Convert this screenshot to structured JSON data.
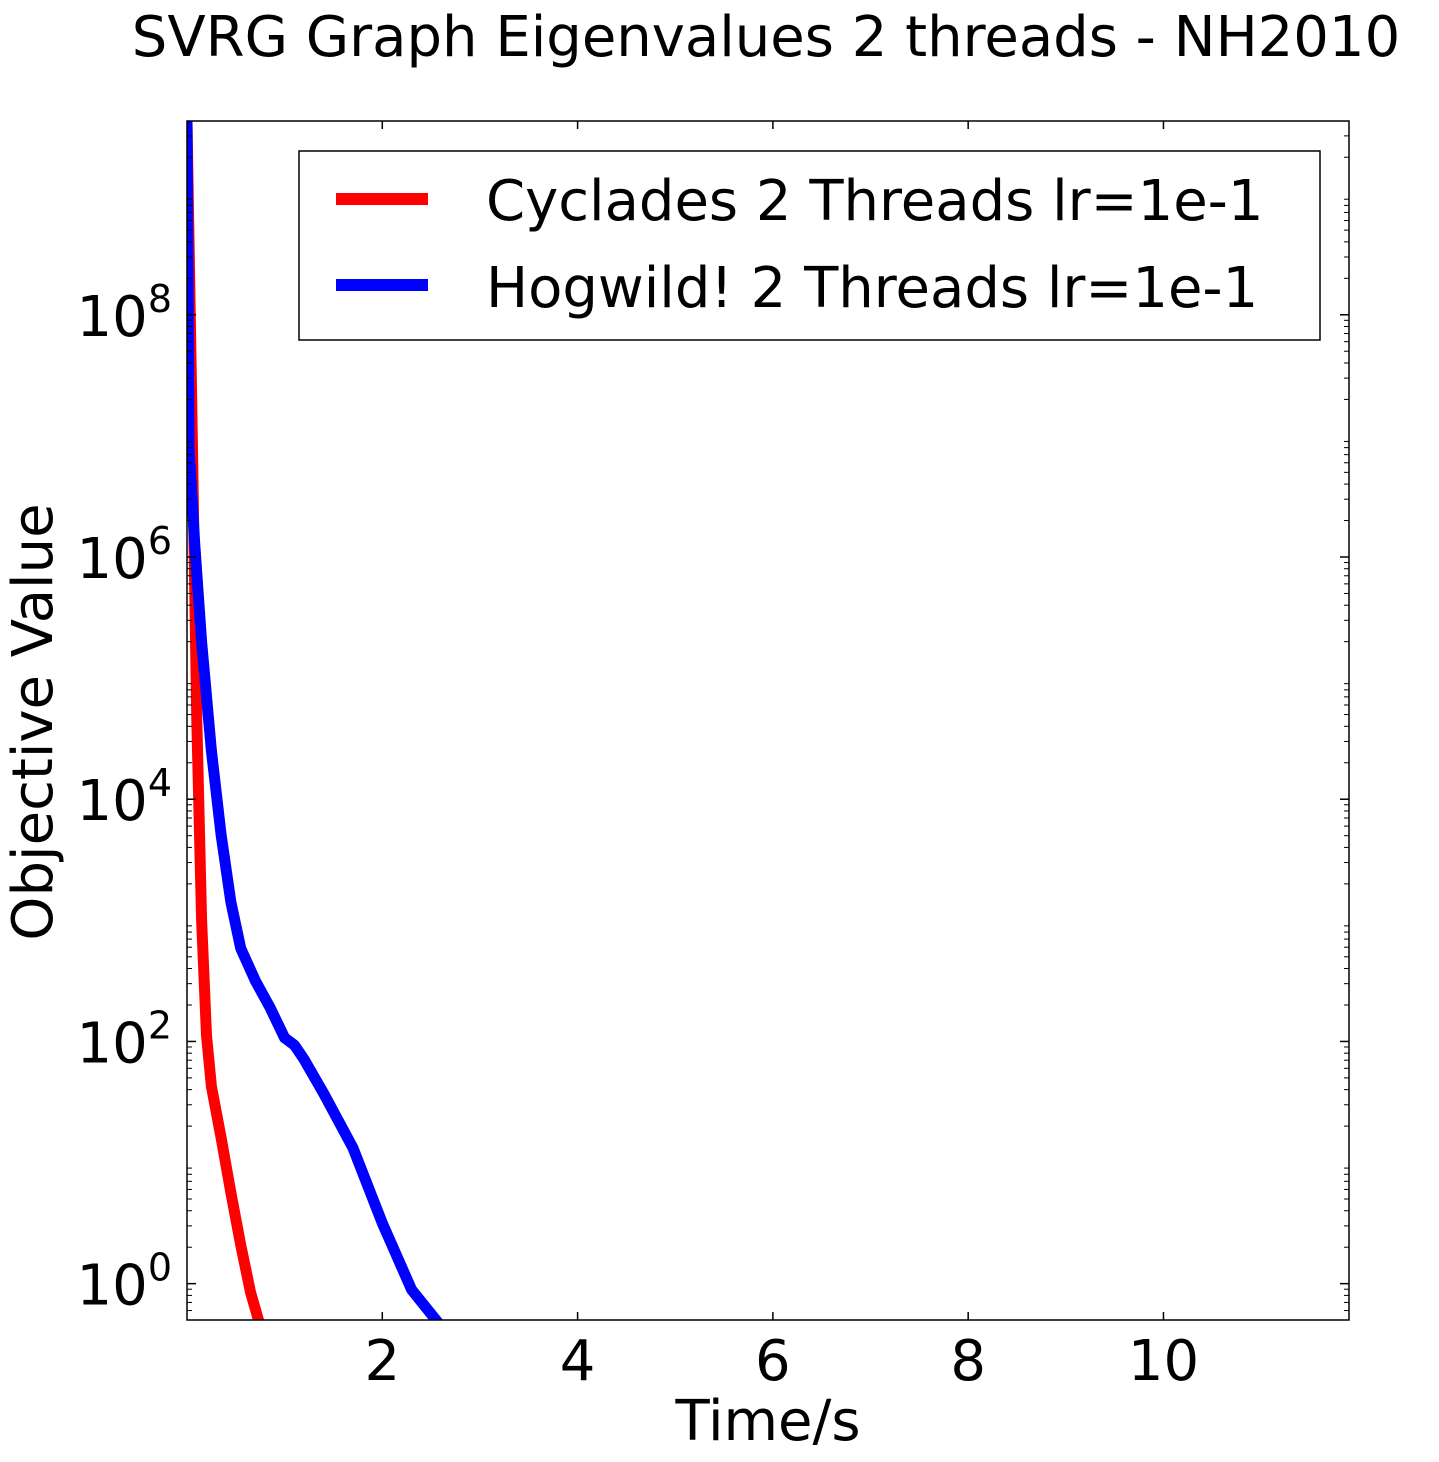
{
  "chart_data": {
    "type": "line",
    "title": "SVRG Graph Eigenvalues 2 threads - NH2010",
    "xlabel": "Time/s",
    "ylabel": "Objective Value",
    "xlim": [
      0.0,
      11.9
    ],
    "ylim_log10": [
      -0.3,
      9.6
    ],
    "yscale": "log",
    "grid": false,
    "legend_position": "top-right",
    "x_ticks": [
      {
        "value": 2,
        "label": "2"
      },
      {
        "value": 4,
        "label": "4"
      },
      {
        "value": 6,
        "label": "6"
      },
      {
        "value": 8,
        "label": "8"
      },
      {
        "value": 10,
        "label": "10"
      }
    ],
    "y_ticks": [
      {
        "exponent": 0,
        "base": "10",
        "exp_label": "0"
      },
      {
        "exponent": 2,
        "base": "10",
        "exp_label": "2"
      },
      {
        "exponent": 4,
        "base": "10",
        "exp_label": "4"
      },
      {
        "exponent": 6,
        "base": "10",
        "exp_label": "6"
      },
      {
        "exponent": 8,
        "base": "10",
        "exp_label": "8"
      }
    ],
    "series": [
      {
        "name": "Cyclades 2 Threads lr=1e-1",
        "color": "#ff0000",
        "x": [
          0.0,
          0.05,
          0.1,
          0.15,
          0.2,
          0.25,
          0.35,
          0.45,
          0.55,
          0.65,
          0.75,
          0.85,
          0.95,
          1.1,
          1.3,
          1.6,
          2.0,
          3.0,
          5.0,
          8.0,
          11.35
        ],
        "log10_y": [
          9.6,
          7.2,
          4.65,
          3.0,
          2.05,
          1.63,
          1.2,
          0.75,
          0.32,
          -0.07,
          -0.35,
          -0.48,
          -0.53,
          -0.55,
          -0.56,
          -0.56,
          -0.56,
          -0.56,
          -0.56,
          -0.56,
          -0.56
        ]
      },
      {
        "name": "Hogwild! 2 Threads lr=1e-1",
        "color": "#0000ff",
        "x": [
          0.0,
          0.02,
          0.08,
          0.15,
          0.25,
          0.35,
          0.45,
          0.55,
          0.7,
          0.85,
          1.0,
          1.1,
          1.2,
          1.4,
          1.7,
          2.0,
          2.3,
          2.6,
          3.0,
          3.5,
          5.0,
          8.0,
          11.25
        ],
        "log10_y": [
          9.6,
          6.9,
          6.1,
          5.3,
          4.4,
          3.7,
          3.15,
          2.77,
          2.5,
          2.28,
          2.03,
          1.97,
          1.85,
          1.57,
          1.12,
          0.5,
          -0.05,
          -0.35,
          -0.5,
          -0.55,
          -0.56,
          -0.56,
          -0.56
        ]
      }
    ]
  }
}
